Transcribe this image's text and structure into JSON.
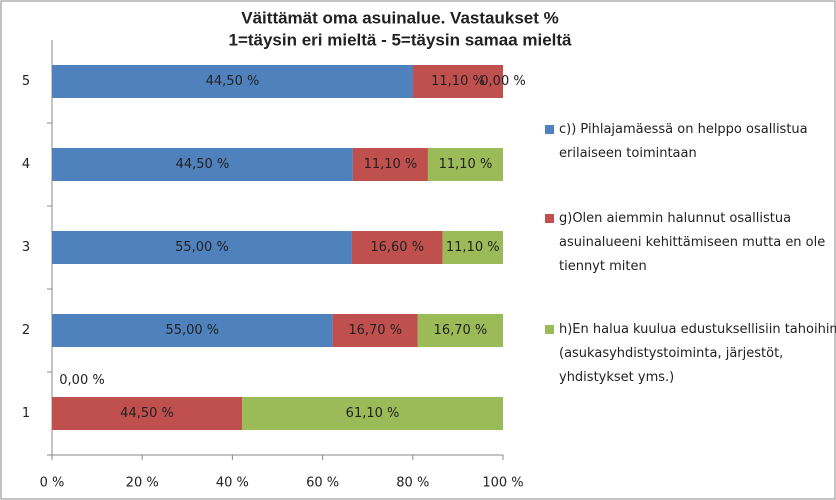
{
  "chart_data": {
    "type": "bar",
    "orientation": "horizontal",
    "stacked": "percent",
    "title": [
      "Väittämät oma asuinalue. Vastaukset %",
      "1=täysin eri mieltä - 5=täysin samaa mieltä"
    ],
    "categories": [
      "1",
      "2",
      "3",
      "4",
      "5"
    ],
    "series": [
      {
        "name": "c)) Pihlajamäessä on helppo osallistua erilaiseen toimintaan",
        "color": "#4f81bd",
        "values": [
          0,
          55,
          55,
          44.5,
          44.5
        ],
        "value_labels": [
          "0,00 %",
          "55,00 %",
          "55,00 %",
          "44,50 %",
          "44,50 %"
        ]
      },
      {
        "name": "g)Olen aiemmin halunnut osallistua asuinalueeni kehittämiseen mutta en ole tiennyt miten",
        "color": "#c0504d",
        "values": [
          44.5,
          16.7,
          16.6,
          11.1,
          11.1
        ],
        "value_labels": [
          "44,50 %",
          "16,70 %",
          "16,60 %",
          "11,10 %",
          "11,10 %"
        ]
      },
      {
        "name": "h)En halua kuulua edustuksellisiin tahoihin (asukasyhdistystoiminta, järjestöt, yhdistykset yms.)",
        "color": "#9bbb59",
        "values": [
          61.1,
          16.7,
          11.1,
          11.1,
          0
        ],
        "value_labels": [
          "61,10 %",
          "16,70 %",
          "11,10 %",
          "11,10 %",
          "0,00 %"
        ]
      }
    ],
    "xlim": [
      0,
      100
    ],
    "xticks": [
      {
        "value": 0,
        "label": "0 %"
      },
      {
        "value": 20,
        "label": "20 %"
      },
      {
        "value": 40,
        "label": "40 %"
      },
      {
        "value": 60,
        "label": "60 %"
      },
      {
        "value": 80,
        "label": "80 %"
      },
      {
        "value": 100,
        "label": "100 %"
      }
    ],
    "legend": "right"
  }
}
